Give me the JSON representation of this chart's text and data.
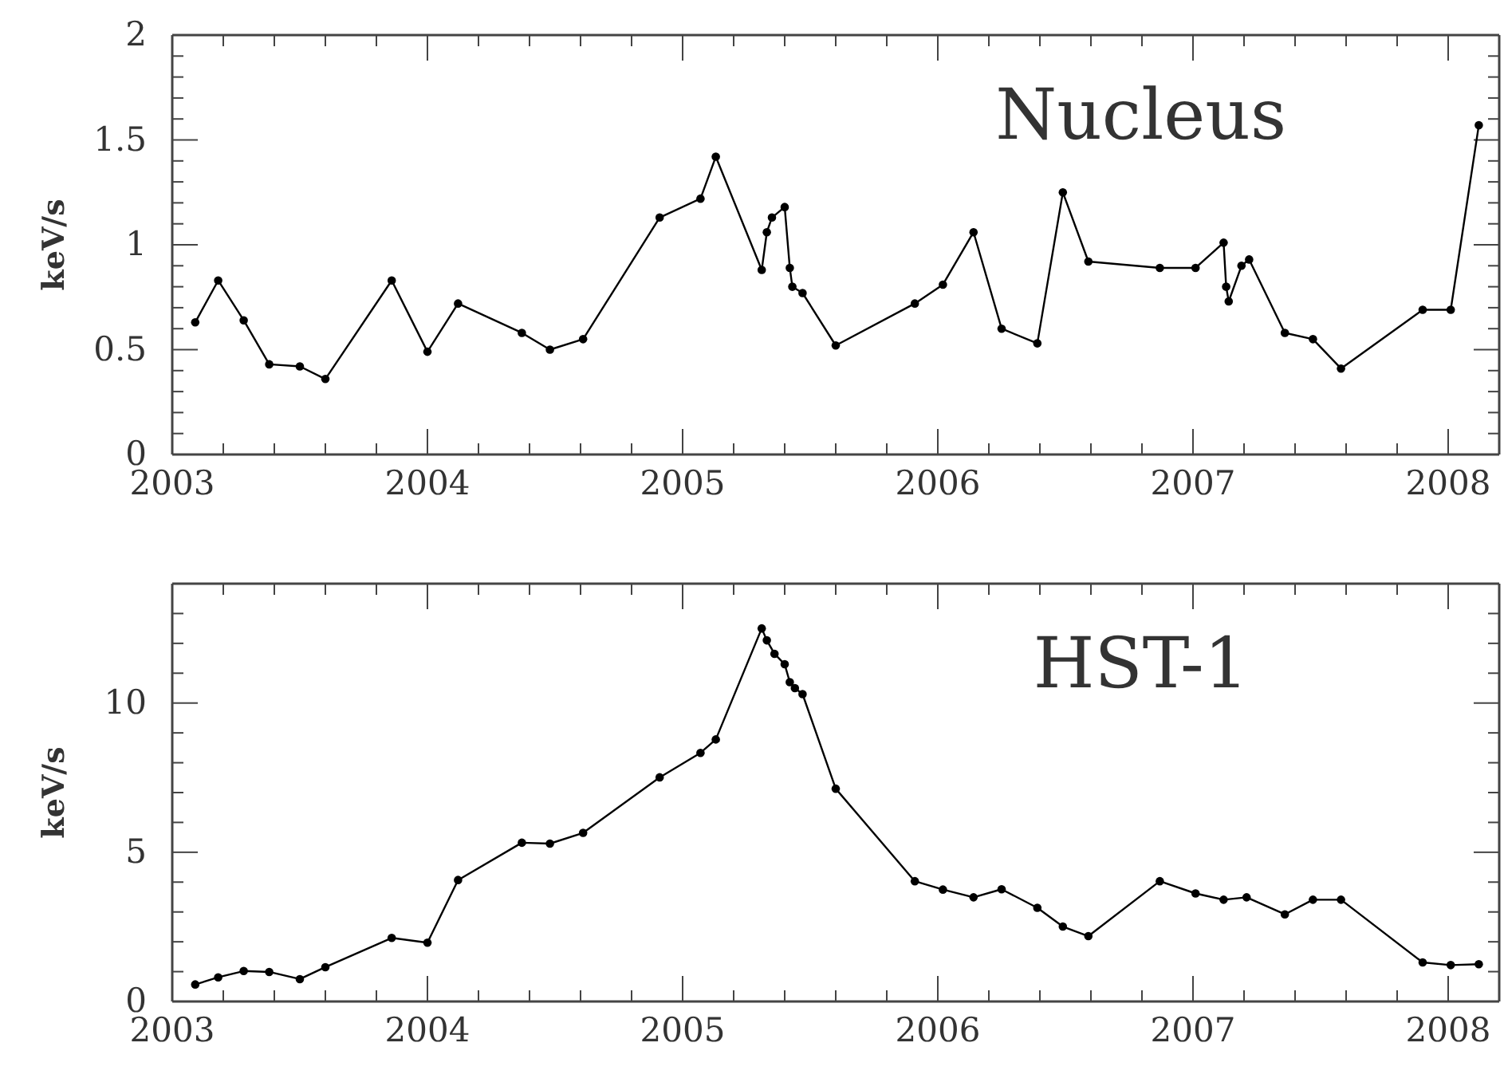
{
  "chart_data": [
    {
      "type": "line",
      "title": "Nucleus",
      "ylabel": "keV/s",
      "marker": "circle",
      "line_style": "solid",
      "grid": false,
      "xlim": [
        2003,
        2008.2
      ],
      "xticks": [
        2003,
        {
          "value": 2003.2,
          "label": null
        },
        {
          "value": 2003.4,
          "label": null
        },
        {
          "value": 2003.6,
          "label": null
        },
        {
          "value": 2003.8,
          "label": null
        },
        2004,
        {
          "value": 2004.2,
          "label": null
        },
        {
          "value": 2004.4,
          "label": null
        },
        {
          "value": 2004.6,
          "label": null
        },
        {
          "value": 2004.8,
          "label": null
        },
        2005,
        {
          "value": 2005.2,
          "label": null
        },
        {
          "value": 2005.4,
          "label": null
        },
        {
          "value": 2005.6,
          "label": null
        },
        {
          "value": 2005.8,
          "label": null
        },
        2006,
        {
          "value": 2006.2,
          "label": null
        },
        {
          "value": 2006.4,
          "label": null
        },
        {
          "value": 2006.6,
          "label": null
        },
        {
          "value": 2006.8,
          "label": null
        },
        2007,
        {
          "value": 2007.2,
          "label": null
        },
        {
          "value": 2007.4,
          "label": null
        },
        {
          "value": 2007.6,
          "label": null
        },
        {
          "value": 2007.8,
          "label": null
        },
        2008
      ],
      "ylim": [
        0,
        2
      ],
      "yticks": [
        0,
        {
          "value": 0.1,
          "label": null
        },
        {
          "value": 0.2,
          "label": null
        },
        {
          "value": 0.3,
          "label": null
        },
        {
          "value": 0.4,
          "label": null
        },
        0.5,
        {
          "value": 0.6,
          "label": null
        },
        {
          "value": 0.7,
          "label": null
        },
        {
          "value": 0.8,
          "label": null
        },
        {
          "value": 0.9,
          "label": null
        },
        1,
        {
          "value": 1.1,
          "label": null
        },
        {
          "value": 1.2,
          "label": null
        },
        {
          "value": 1.3,
          "label": null
        },
        {
          "value": 1.4,
          "label": null
        },
        1.5,
        {
          "value": 1.6,
          "label": null
        },
        {
          "value": 1.7,
          "label": null
        },
        {
          "value": 1.8,
          "label": null
        },
        {
          "value": 1.9,
          "label": null
        },
        2
      ],
      "series": [
        {
          "color": "#000000",
          "x": [
            2003.09,
            2003.18,
            2003.28,
            2003.38,
            2003.5,
            2003.6,
            2003.86,
            2004.0,
            2004.12,
            2004.37,
            2004.48,
            2004.61,
            2004.91,
            2005.07,
            2005.13,
            2005.31,
            2005.33,
            2005.35,
            2005.4,
            2005.42,
            2005.43,
            2005.47,
            2005.6,
            2005.91,
            2006.02,
            2006.14,
            2006.25,
            2006.39,
            2006.49,
            2006.59,
            2006.87,
            2007.01,
            2007.12,
            2007.13,
            2007.14,
            2007.19,
            2007.22,
            2007.36,
            2007.47,
            2007.58,
            2007.9,
            2008.01,
            2008.12
          ],
          "values": [
            0.63,
            0.83,
            0.64,
            0.43,
            0.42,
            0.36,
            0.83,
            0.49,
            0.72,
            0.58,
            0.5,
            0.55,
            1.13,
            1.22,
            1.42,
            0.88,
            1.06,
            1.13,
            1.18,
            0.89,
            0.8,
            0.77,
            0.52,
            0.72,
            0.81,
            1.06,
            0.6,
            0.53,
            1.25,
            0.92,
            0.89,
            0.89,
            1.01,
            0.8,
            0.73,
            0.9,
            0.93,
            0.58,
            0.55,
            0.41,
            0.69,
            0.69,
            1.57
          ]
        }
      ]
    },
    {
      "type": "line",
      "title": "HST-1",
      "ylabel": "keV/s",
      "marker": "circle",
      "line_style": "solid",
      "grid": false,
      "xlim": [
        2003,
        2008.2
      ],
      "xticks": [
        2003,
        {
          "value": 2003.2,
          "label": null
        },
        {
          "value": 2003.4,
          "label": null
        },
        {
          "value": 2003.6,
          "label": null
        },
        {
          "value": 2003.8,
          "label": null
        },
        2004,
        {
          "value": 2004.2,
          "label": null
        },
        {
          "value": 2004.4,
          "label": null
        },
        {
          "value": 2004.6,
          "label": null
        },
        {
          "value": 2004.8,
          "label": null
        },
        2005,
        {
          "value": 2005.2,
          "label": null
        },
        {
          "value": 2005.4,
          "label": null
        },
        {
          "value": 2005.6,
          "label": null
        },
        {
          "value": 2005.8,
          "label": null
        },
        2006,
        {
          "value": 2006.2,
          "label": null
        },
        {
          "value": 2006.4,
          "label": null
        },
        {
          "value": 2006.6,
          "label": null
        },
        {
          "value": 2006.8,
          "label": null
        },
        2007,
        {
          "value": 2007.2,
          "label": null
        },
        {
          "value": 2007.4,
          "label": null
        },
        {
          "value": 2007.6,
          "label": null
        },
        {
          "value": 2007.8,
          "label": null
        },
        2008
      ],
      "ylim": [
        0,
        14
      ],
      "yticks": [
        0,
        {
          "value": 1,
          "label": null
        },
        {
          "value": 2,
          "label": null
        },
        {
          "value": 3,
          "label": null
        },
        {
          "value": 4,
          "label": null
        },
        5,
        {
          "value": 6,
          "label": null
        },
        {
          "value": 7,
          "label": null
        },
        {
          "value": 8,
          "label": null
        },
        {
          "value": 9,
          "label": null
        },
        10,
        {
          "value": 11,
          "label": null
        },
        {
          "value": 12,
          "label": null
        },
        {
          "value": 13,
          "label": null
        }
      ],
      "series": [
        {
          "color": "#000000",
          "x": [
            2003.09,
            2003.18,
            2003.28,
            2003.38,
            2003.5,
            2003.6,
            2003.86,
            2004.0,
            2004.12,
            2004.37,
            2004.48,
            2004.61,
            2004.91,
            2005.07,
            2005.13,
            2005.31,
            2005.33,
            2005.36,
            2005.4,
            2005.42,
            2005.44,
            2005.47,
            2005.6,
            2005.91,
            2006.02,
            2006.14,
            2006.25,
            2006.39,
            2006.49,
            2006.59,
            2006.87,
            2007.01,
            2007.12,
            2007.21,
            2007.36,
            2007.47,
            2007.58,
            2007.9,
            2008.01,
            2008.12
          ],
          "values": [
            0.57,
            0.81,
            1.02,
            0.99,
            0.75,
            1.15,
            2.13,
            1.97,
            4.07,
            5.32,
            5.29,
            5.65,
            7.51,
            8.33,
            8.78,
            12.5,
            12.1,
            11.65,
            11.3,
            10.7,
            10.5,
            10.3,
            7.13,
            4.03,
            3.75,
            3.49,
            3.76,
            3.14,
            2.51,
            2.19,
            4.03,
            3.62,
            3.41,
            3.49,
            2.92,
            3.41,
            3.41,
            1.31,
            1.22,
            1.25
          ]
        }
      ]
    }
  ]
}
